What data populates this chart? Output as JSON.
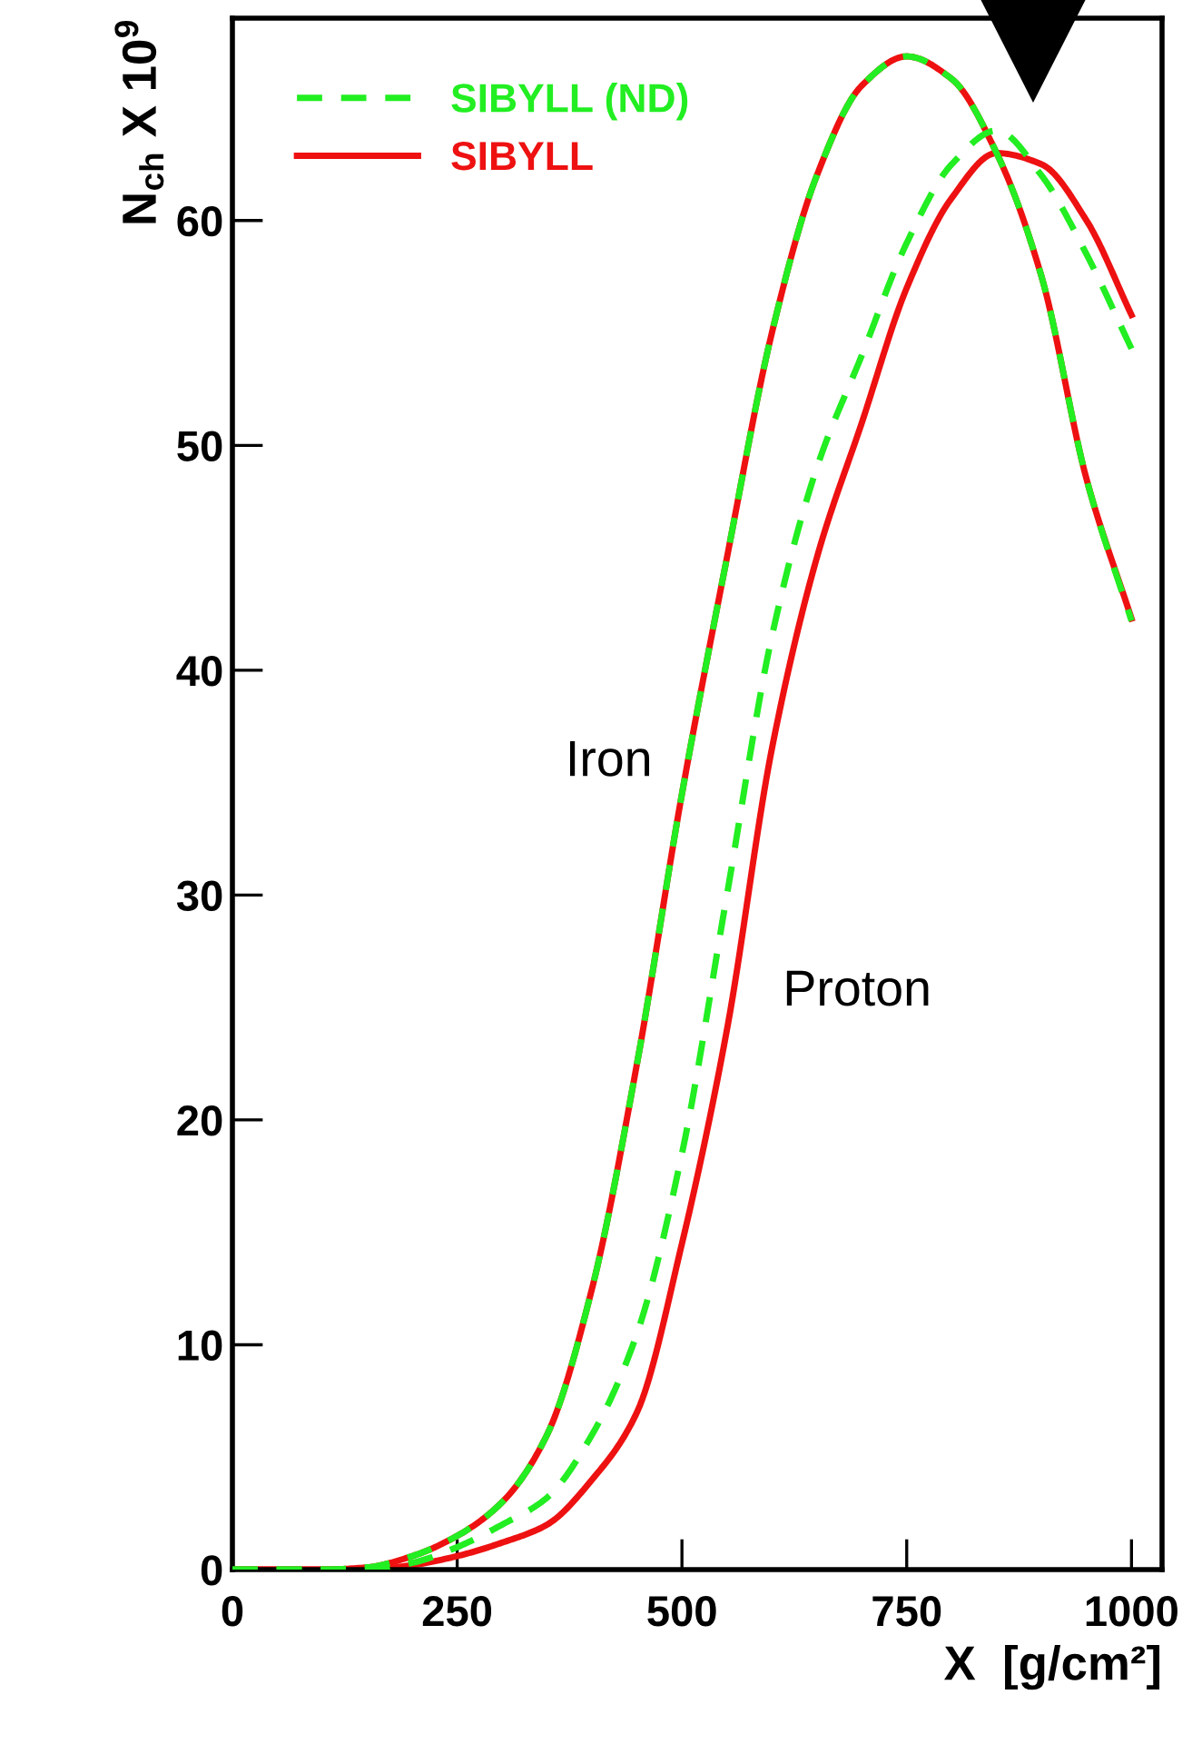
{
  "chart_data": {
    "type": "line",
    "xlabel": "X  [g/cm²]",
    "ylabel": "N$_{ch}$ X 10$^{9}$",
    "xlim": [
      0,
      1034
    ],
    "ylim": [
      0,
      69
    ],
    "xticks": [
      0,
      250,
      500,
      750,
      1000
    ],
    "yticks": [
      0,
      10,
      20,
      30,
      40,
      50,
      60
    ],
    "grid": false,
    "legend": "top left",
    "marker": "none",
    "annotations": [
      "Iron",
      "Proton"
    ],
    "series": [
      {
        "name": "SIBYLL (ND)",
        "color": "#22ee22",
        "line_style": "dashed",
        "x": [
          0,
          100,
          150,
          200,
          250,
          300,
          350,
          400,
          450,
          500,
          550,
          600,
          650,
          700,
          750,
          800,
          850,
          900,
          950,
          1000
        ],
        "values": [
          0,
          0,
          0.1,
          0.6,
          1.5,
          3,
          6,
          12.5,
          22.5,
          34.5,
          45,
          55,
          62,
          66,
          67.3,
          66.3,
          63,
          57.5,
          48.5,
          42.2
        ]
      },
      {
        "name": "SIBYLL",
        "color": "#ee1111",
        "line_style": "solid",
        "x": [
          0,
          100,
          150,
          200,
          250,
          300,
          350,
          400,
          450,
          500,
          550,
          600,
          650,
          700,
          750,
          800,
          850,
          900,
          950,
          1000
        ],
        "values": [
          0,
          0,
          0.1,
          0.6,
          1.5,
          3,
          6,
          12.5,
          22.5,
          34.5,
          45,
          55,
          62,
          66,
          67.3,
          66.3,
          63,
          57.5,
          48.5,
          42.3
        ]
      },
      {
        "color": "#22ee22",
        "line_style": "dashed",
        "x": [
          0,
          150,
          200,
          250,
          300,
          350,
          400,
          450,
          500,
          550,
          600,
          650,
          700,
          750,
          800,
          850,
          900,
          950,
          1000
        ],
        "values": [
          0,
          0,
          0.3,
          1,
          2,
          3.2,
          6,
          10.5,
          18.5,
          30,
          41.5,
          49,
          54,
          59,
          62.5,
          64,
          62,
          58.5,
          54.3
        ]
      },
      {
        "color": "#ee1111",
        "line_style": "solid",
        "x": [
          0,
          150,
          200,
          250,
          300,
          350,
          400,
          450,
          500,
          550,
          600,
          650,
          700,
          750,
          800,
          850,
          900,
          950,
          1000
        ],
        "values": [
          0,
          0,
          0.2,
          0.6,
          1.2,
          2,
          4,
          7,
          14.5,
          24,
          36.5,
          45,
          51,
          57,
          61,
          63,
          62.5,
          60,
          55.8
        ]
      }
    ]
  }
}
